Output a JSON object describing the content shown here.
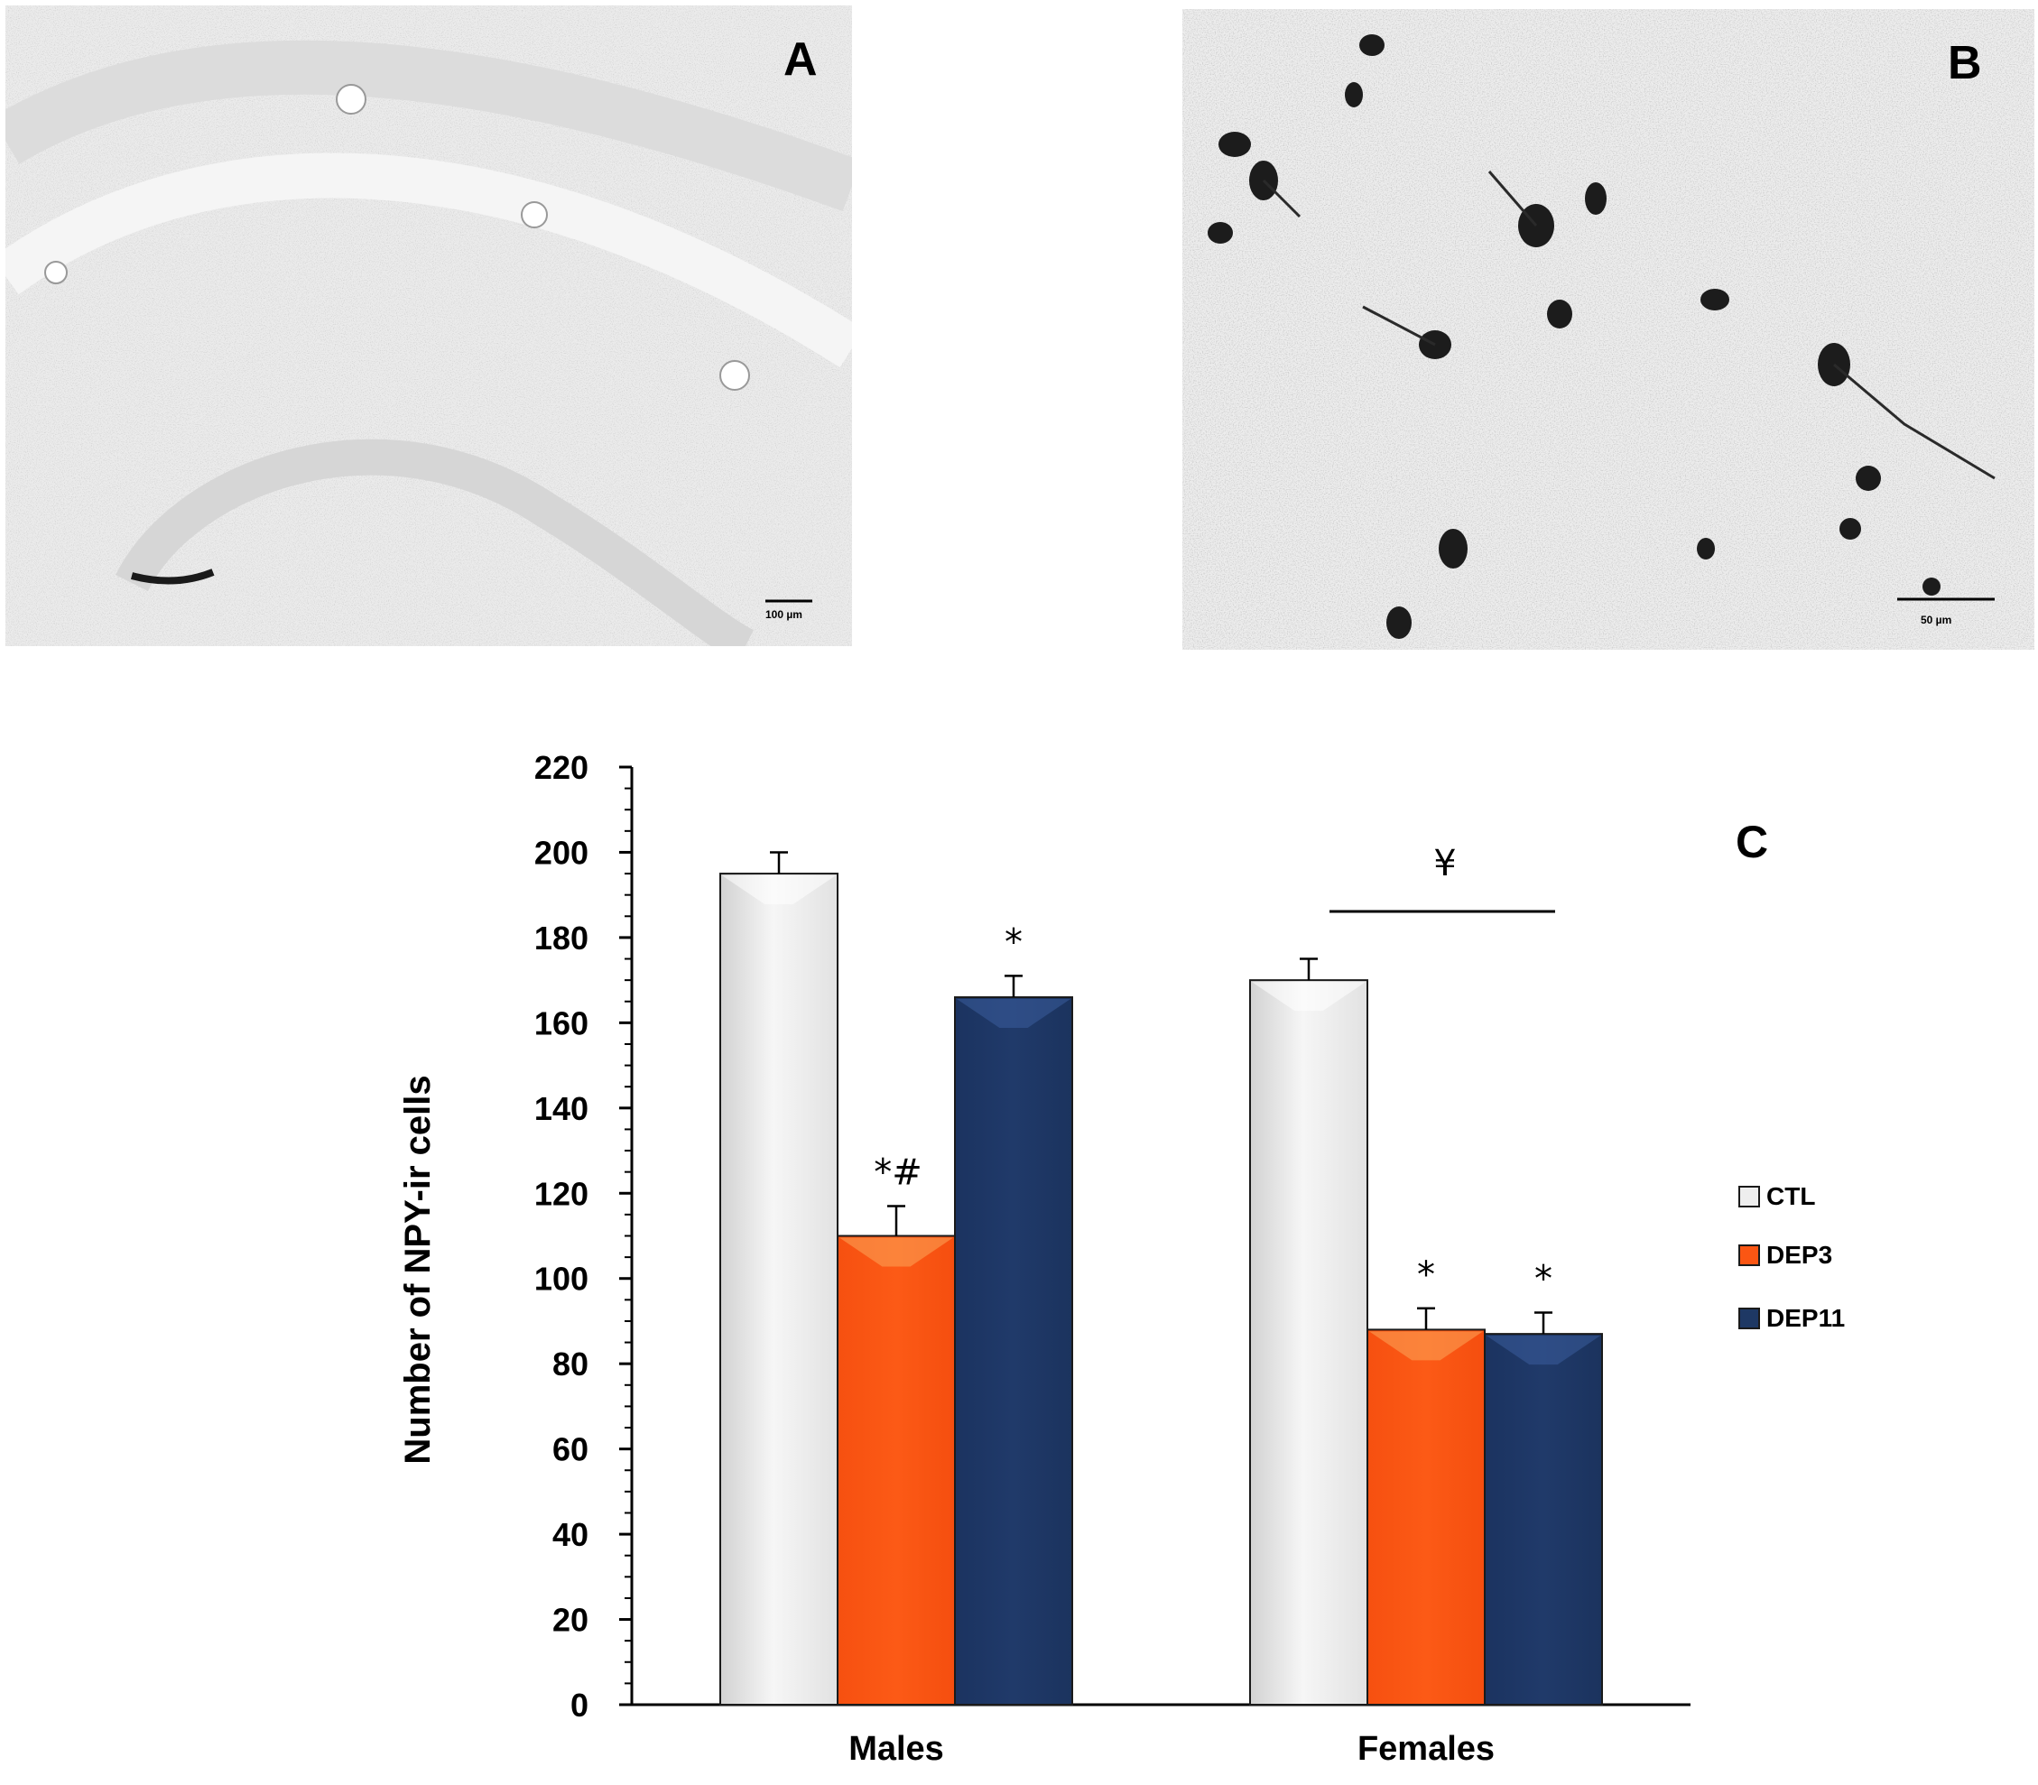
{
  "panels": [
    {
      "letter": "A",
      "scale_bar": "100 µm"
    },
    {
      "letter": "B",
      "scale_bar": "50 µm"
    }
  ],
  "panel_c_letter": "C",
  "colors": {
    "CTL": "#eeeeee",
    "DEP3": "#fb5613",
    "DEP11": "#1e3864"
  },
  "chart_data": {
    "type": "bar",
    "categories": [
      "Males",
      "Females"
    ],
    "ylabel": "Number of NPY-ir cells",
    "xlabel": "",
    "ylim": [
      0,
      220
    ],
    "yticks": [
      0,
      20,
      40,
      60,
      80,
      100,
      120,
      140,
      160,
      180,
      200,
      220
    ],
    "grid": false,
    "legend_position": "right",
    "series": [
      {
        "name": "CTL",
        "values": [
          195,
          170
        ],
        "errors": [
          5,
          5
        ],
        "annotations": [
          "",
          ""
        ]
      },
      {
        "name": "DEP3",
        "values": [
          110,
          88
        ],
        "errors": [
          7,
          5
        ],
        "annotations": [
          "*#",
          "*"
        ]
      },
      {
        "name": "DEP11",
        "values": [
          166,
          87
        ],
        "errors": [
          5,
          5
        ],
        "annotations": [
          "*",
          "*"
        ]
      }
    ],
    "group_annotation": {
      "category": "Females",
      "text": "¥"
    }
  }
}
